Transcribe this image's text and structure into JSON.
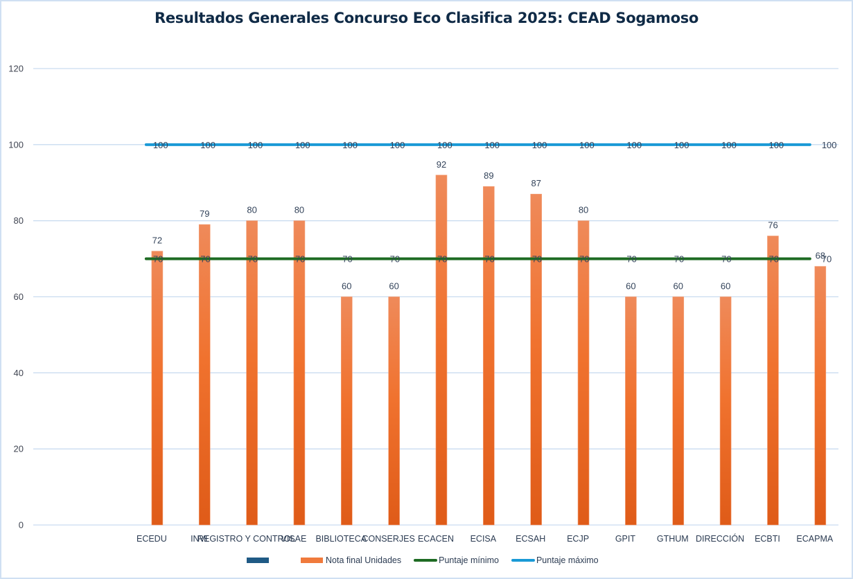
{
  "chart_data": {
    "type": "bar",
    "title": "Resultados Generales Concurso Eco Clasifica 2025: CEAD Sogamoso",
    "xlabel": "",
    "ylabel": "",
    "ylim": [
      0,
      120
    ],
    "yticks": [
      0,
      20,
      40,
      60,
      80,
      100,
      120
    ],
    "grid": true,
    "legend_position": "bottom",
    "leading_empty_categories": 2,
    "categories": [
      "ECEDU",
      "INVI",
      "REGISTRO Y CONTROL",
      "VISAE",
      "BIBLIOTECA",
      "CONSERJES",
      "ECACEN",
      "ECISA",
      "ECSAH",
      "ECJP",
      "GPIT",
      "GTHUM",
      "DIRECCIÓN",
      "ECBTI",
      "ECAPMA"
    ],
    "series": [
      {
        "name": "",
        "type": "bar",
        "color": "#1f5a85",
        "values": []
      },
      {
        "name": "Nota final Unidades",
        "type": "bar",
        "color": "#f07a3c",
        "values": [
          72,
          79,
          80,
          80,
          60,
          60,
          92,
          89,
          87,
          80,
          60,
          60,
          60,
          76,
          68
        ]
      },
      {
        "name": "Puntaje mínimo",
        "type": "line",
        "color": "#1e6b23",
        "values": [
          70,
          70,
          70,
          70,
          70,
          70,
          70,
          70,
          70,
          70,
          70,
          70,
          70,
          70,
          70
        ]
      },
      {
        "name": "Puntaje máximo",
        "type": "line",
        "color": "#1a9ad6",
        "values": [
          100,
          100,
          100,
          100,
          100,
          100,
          100,
          100,
          100,
          100,
          100,
          100,
          100,
          100,
          100
        ]
      }
    ]
  }
}
